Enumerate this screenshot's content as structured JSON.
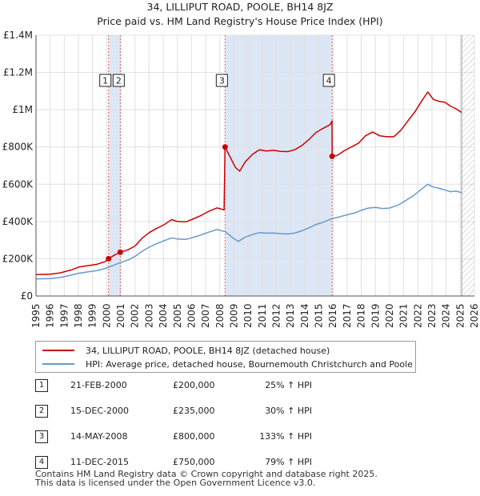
{
  "chart_data": {
    "type": "line",
    "title": "34, LILLIPUT ROAD, POOLE, BH14 8JZ",
    "subtitle": "Price paid vs. HM Land Registry's House Price Index (HPI)",
    "xlim": [
      1995,
      2026
    ],
    "ylim": [
      0,
      1400000
    ],
    "x_ticks": [
      "1995",
      "1996",
      "1997",
      "1998",
      "1999",
      "2000",
      "2001",
      "2002",
      "2003",
      "2004",
      "2005",
      "2006",
      "2007",
      "2008",
      "2009",
      "2010",
      "2011",
      "2012",
      "2013",
      "2014",
      "2015",
      "2016",
      "2017",
      "2018",
      "2019",
      "2020",
      "2021",
      "2022",
      "2023",
      "2024",
      "2025",
      "2026"
    ],
    "y_ticks": [
      {
        "value": 0,
        "label": "£0"
      },
      {
        "value": 200000,
        "label": "£200K"
      },
      {
        "value": 400000,
        "label": "£400K"
      },
      {
        "value": 600000,
        "label": "£600K"
      },
      {
        "value": 800000,
        "label": "£800K"
      },
      {
        "value": 1000000,
        "label": "£1M"
      },
      {
        "value": 1200000,
        "label": "£1.2M"
      },
      {
        "value": 1400000,
        "label": "£1.4M"
      }
    ],
    "forecast_from": 2025.1,
    "shaded_periods": [
      [
        2000.13,
        2000.96
      ],
      [
        2008.37,
        2015.94
      ]
    ],
    "series": [
      {
        "name": "34, LILLIPUT ROAD, POOLE, BH14 8JZ (detached house)",
        "color": "#cc0000",
        "points": [
          [
            1995,
            115000
          ],
          [
            1996,
            117000
          ],
          [
            1996.7,
            124000
          ],
          [
            1997.5,
            140000
          ],
          [
            1998,
            155000
          ],
          [
            1998.7,
            163000
          ],
          [
            1999.3,
            170000
          ],
          [
            1999.9,
            185000
          ],
          [
            2000.13,
            200000
          ],
          [
            2000.6,
            222000
          ],
          [
            2000.96,
            235000
          ],
          [
            2001.5,
            248000
          ],
          [
            2002,
            268000
          ],
          [
            2002.5,
            310000
          ],
          [
            2003,
            340000
          ],
          [
            2003.5,
            362000
          ],
          [
            2004,
            380000
          ],
          [
            2004.6,
            410000
          ],
          [
            2005,
            400000
          ],
          [
            2005.6,
            398000
          ],
          [
            2006,
            410000
          ],
          [
            2006.6,
            430000
          ],
          [
            2007.3,
            458000
          ],
          [
            2007.8,
            473000
          ],
          [
            2008.3,
            462000
          ],
          [
            2008.37,
            800000
          ],
          [
            2008.7,
            750000
          ],
          [
            2009.1,
            690000
          ],
          [
            2009.4,
            670000
          ],
          [
            2009.8,
            720000
          ],
          [
            2010.3,
            760000
          ],
          [
            2010.8,
            785000
          ],
          [
            2011.3,
            778000
          ],
          [
            2011.8,
            782000
          ],
          [
            2012.3,
            776000
          ],
          [
            2012.8,
            775000
          ],
          [
            2013.3,
            785000
          ],
          [
            2013.8,
            808000
          ],
          [
            2014.3,
            840000
          ],
          [
            2014.8,
            878000
          ],
          [
            2015.3,
            900000
          ],
          [
            2015.8,
            920000
          ],
          [
            2015.93,
            940000
          ],
          [
            2015.94,
            750000
          ],
          [
            2016.3,
            755000
          ],
          [
            2016.8,
            780000
          ],
          [
            2017.3,
            800000
          ],
          [
            2017.8,
            820000
          ],
          [
            2018.3,
            860000
          ],
          [
            2018.8,
            880000
          ],
          [
            2019.3,
            860000
          ],
          [
            2019.8,
            855000
          ],
          [
            2020.3,
            855000
          ],
          [
            2020.8,
            890000
          ],
          [
            2021.3,
            940000
          ],
          [
            2021.8,
            990000
          ],
          [
            2022.3,
            1050000
          ],
          [
            2022.7,
            1095000
          ],
          [
            2023.1,
            1055000
          ],
          [
            2023.5,
            1045000
          ],
          [
            2023.9,
            1040000
          ],
          [
            2024.3,
            1020000
          ],
          [
            2024.7,
            1005000
          ],
          [
            2025.1,
            985000
          ]
        ]
      },
      {
        "name": "HPI: Average price, detached house, Bournemouth Christchurch and Poole",
        "color": "#6699cc",
        "points": [
          [
            1995,
            92000
          ],
          [
            1996,
            93000
          ],
          [
            1996.7,
            99000
          ],
          [
            1997.5,
            112000
          ],
          [
            1998,
            122000
          ],
          [
            1998.7,
            130000
          ],
          [
            1999.3,
            136000
          ],
          [
            1999.9,
            148000
          ],
          [
            2000.5,
            165000
          ],
          [
            2001,
            180000
          ],
          [
            2001.5,
            193000
          ],
          [
            2002,
            212000
          ],
          [
            2002.5,
            240000
          ],
          [
            2003,
            262000
          ],
          [
            2003.5,
            280000
          ],
          [
            2004,
            295000
          ],
          [
            2004.6,
            312000
          ],
          [
            2005,
            306000
          ],
          [
            2005.6,
            304000
          ],
          [
            2006,
            312000
          ],
          [
            2006.6,
            326000
          ],
          [
            2007.3,
            345000
          ],
          [
            2007.8,
            357000
          ],
          [
            2008.4,
            345000
          ],
          [
            2008.9,
            313000
          ],
          [
            2009.3,
            293000
          ],
          [
            2009.8,
            316000
          ],
          [
            2010.3,
            330000
          ],
          [
            2010.8,
            340000
          ],
          [
            2011.3,
            337000
          ],
          [
            2011.8,
            338000
          ],
          [
            2012.3,
            335000
          ],
          [
            2012.8,
            333000
          ],
          [
            2013.3,
            338000
          ],
          [
            2013.8,
            350000
          ],
          [
            2014.3,
            366000
          ],
          [
            2014.8,
            384000
          ],
          [
            2015.3,
            396000
          ],
          [
            2015.9,
            414000
          ],
          [
            2016.5,
            426000
          ],
          [
            2017,
            436000
          ],
          [
            2017.5,
            445000
          ],
          [
            2018,
            460000
          ],
          [
            2018.5,
            472000
          ],
          [
            2019,
            476000
          ],
          [
            2019.5,
            470000
          ],
          [
            2020,
            472000
          ],
          [
            2020.6,
            488000
          ],
          [
            2021.2,
            515000
          ],
          [
            2021.7,
            540000
          ],
          [
            2022.2,
            570000
          ],
          [
            2022.7,
            600000
          ],
          [
            2023.1,
            585000
          ],
          [
            2023.5,
            578000
          ],
          [
            2023.9,
            570000
          ],
          [
            2024.3,
            560000
          ],
          [
            2024.7,
            563000
          ],
          [
            2025.1,
            555000
          ]
        ]
      }
    ],
    "sales": [
      {
        "id": "1",
        "date": "21-FEB-2000",
        "x": 2000.13,
        "price": 200000,
        "price_label": "£200,000",
        "hpi": "25% ↑ HPI"
      },
      {
        "id": "2",
        "date": "15-DEC-2000",
        "x": 2000.96,
        "price": 235000,
        "price_label": "£235,000",
        "hpi": "30% ↑ HPI"
      },
      {
        "id": "3",
        "date": "14-MAY-2008",
        "x": 2008.37,
        "price": 800000,
        "price_label": "£800,000",
        "hpi": "133% ↑ HPI"
      },
      {
        "id": "4",
        "date": "11-DEC-2015",
        "x": 2015.94,
        "price": 750000,
        "price_label": "£750,000",
        "hpi": "79% ↑ HPI"
      }
    ]
  },
  "legend": {
    "property_label": "34, LILLIPUT ROAD, POOLE, BH14 8JZ (detached house)",
    "hpi_label": "HPI: Average price, detached house, Bournemouth Christchurch and Poole"
  },
  "footer": {
    "line1": "Contains HM Land Registry data © Crown copyright and database right 2025.",
    "line2": "This data is licensed under the Open Government Licence v3.0."
  },
  "colors": {
    "property": "#cc0000",
    "hpi": "#6699cc",
    "shade": "#dde6f5",
    "grid": "#e0e0e0"
  }
}
